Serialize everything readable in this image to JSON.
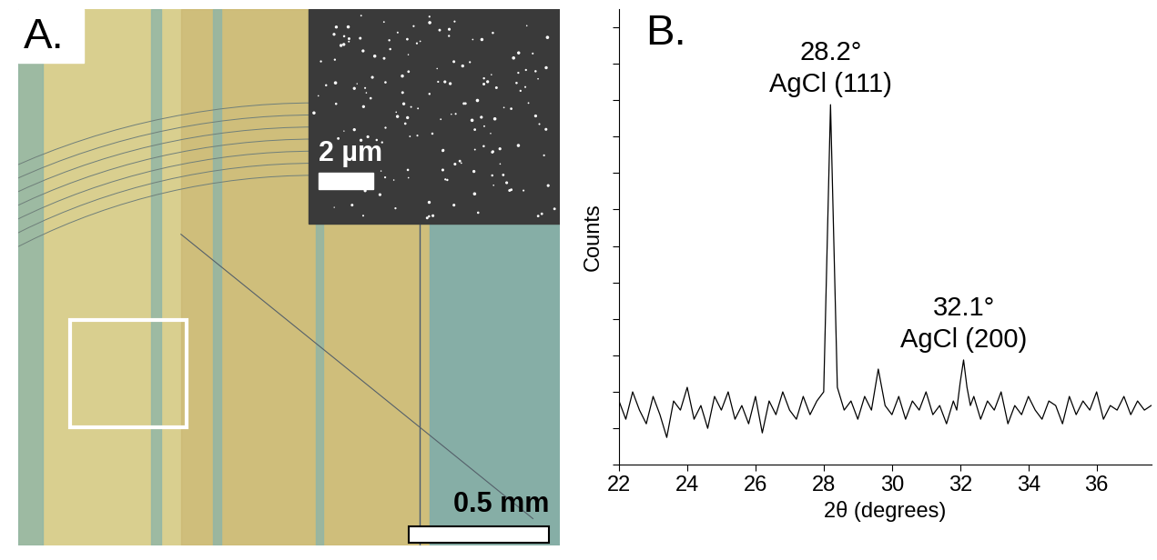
{
  "image_panel": {
    "label": "A.",
    "inset_scale_bar": "2 µm",
    "scale_bar": "0.5 mm"
  },
  "chart_data": {
    "type": "line",
    "panel_label": "B.",
    "x_label": "2θ (degrees)",
    "y_label": "Counts",
    "x": [
      22.0,
      22.2,
      22.4,
      22.6,
      22.8,
      23.0,
      23.2,
      23.4,
      23.6,
      23.8,
      24.0,
      24.2,
      24.4,
      24.6,
      24.8,
      25.0,
      25.2,
      25.4,
      25.6,
      25.8,
      26.0,
      26.2,
      26.4,
      26.6,
      26.8,
      27.0,
      27.2,
      27.4,
      27.6,
      27.8,
      28.0,
      28.2,
      28.4,
      28.6,
      28.8,
      29.0,
      29.2,
      29.4,
      29.6,
      29.8,
      30.0,
      30.2,
      30.4,
      30.6,
      30.8,
      31.0,
      31.2,
      31.4,
      31.6,
      31.8,
      31.9,
      32.0,
      32.1,
      32.2,
      32.3,
      32.4,
      32.6,
      32.8,
      33.0,
      33.2,
      33.4,
      33.6,
      33.8,
      34.0,
      34.2,
      34.4,
      34.6,
      34.8,
      35.0,
      35.2,
      35.4,
      35.6,
      35.8,
      36.0,
      36.2,
      36.4,
      36.6,
      36.8,
      37.0,
      37.2,
      37.4,
      37.6
    ],
    "values": [
      14,
      10,
      16,
      12,
      9,
      15,
      11,
      6,
      14,
      12,
      17,
      10,
      13,
      8,
      15,
      12,
      16,
      10,
      13,
      9,
      15,
      7,
      14,
      11,
      16,
      12,
      10,
      15,
      11,
      14,
      16,
      79,
      17,
      12,
      14,
      10,
      15,
      12,
      21,
      13,
      11,
      15,
      10,
      14,
      12,
      16,
      11,
      13,
      9,
      14,
      12,
      18,
      23,
      17,
      13,
      15,
      10,
      14,
      12,
      16,
      9,
      13,
      11,
      15,
      12,
      10,
      14,
      13,
      9,
      15,
      11,
      14,
      12,
      16,
      10,
      13,
      12,
      15,
      11,
      14,
      12,
      13
    ],
    "color": "#000000",
    "xlim": [
      22,
      37.6
    ],
    "xticks": [
      22,
      24,
      26,
      28,
      30,
      32,
      34,
      36
    ],
    "ylim": [
      0,
      100
    ],
    "yticks": [
      0,
      8,
      16,
      24,
      32,
      40,
      48,
      56,
      64,
      72,
      80,
      88,
      96
    ],
    "tick_labels": "x",
    "annotations": [
      {
        "text": "28.2°\nAgCl (111)",
        "x": 28.2
      },
      {
        "text": "32.1°\nAgCl (200)",
        "x": 32.1
      }
    ]
  }
}
